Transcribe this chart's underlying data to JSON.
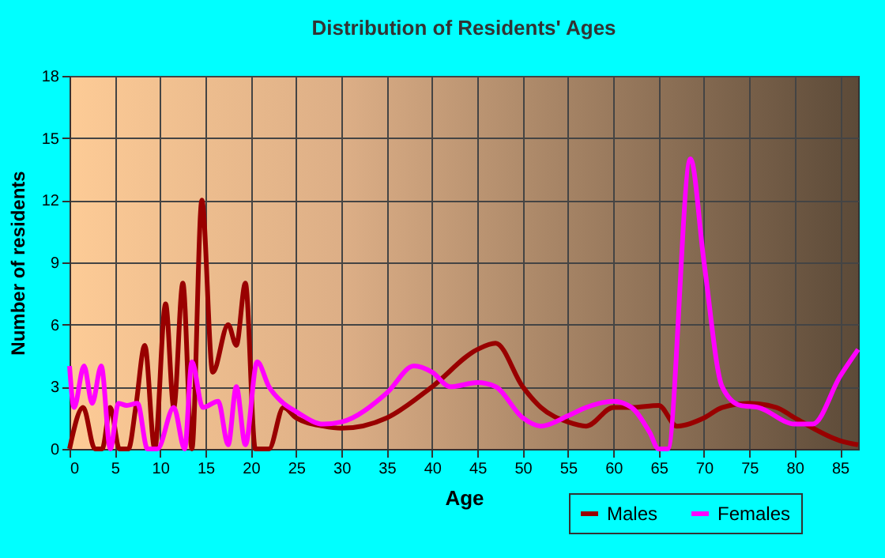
{
  "chart_data": {
    "type": "line",
    "title": "Distribution of Residents' Ages",
    "xlabel": "Age",
    "ylabel": "Number of residents",
    "xlim": [
      0,
      87
    ],
    "xticks": [
      0,
      5,
      10,
      15,
      20,
      25,
      30,
      35,
      40,
      45,
      50,
      55,
      60,
      65,
      70,
      75,
      80,
      85
    ],
    "ylim": [
      0,
      18
    ],
    "yticks": [
      0,
      3,
      6,
      9,
      12,
      15,
      18
    ],
    "grid": true,
    "legend": "bottom right",
    "marker": "none",
    "line_style": "solid",
    "series": [
      {
        "name": "Males",
        "color": "#990000",
        "x": [
          0,
          1.5,
          2.8,
          3.6,
          4.5,
          5.5,
          6.5,
          7.3,
          8.3,
          9.4,
          10.6,
          11.5,
          12.5,
          13.5,
          14.6,
          15.8,
          17.5,
          18.4,
          19.4,
          20.5,
          22,
          23.6,
          25,
          28,
          30,
          35,
          40,
          45,
          47,
          50,
          52,
          55,
          57,
          60,
          62,
          65,
          67,
          70,
          72,
          75,
          78,
          80,
          85,
          87
        ],
        "values": [
          0,
          2,
          0,
          0,
          2,
          0,
          0,
          2,
          5,
          0,
          7,
          2,
          8,
          0,
          12,
          3.7,
          6,
          5,
          8,
          0,
          0,
          2,
          1.5,
          1.1,
          1,
          1.5,
          3,
          4.8,
          5.1,
          3,
          2,
          1.3,
          1.1,
          2,
          2,
          2.1,
          1.1,
          1.5,
          2,
          2.2,
          2,
          1.5,
          0.4,
          0.2
        ]
      },
      {
        "name": "Females",
        "color": "#ff00ff",
        "x": [
          0,
          0.5,
          1.6,
          2.5,
          3.5,
          4.5,
          5.4,
          6.3,
          7.5,
          8.6,
          9.7,
          11.5,
          12.7,
          13.5,
          14.7,
          16.4,
          17.5,
          18.4,
          19.4,
          20.7,
          22,
          23.6,
          25,
          28,
          30,
          35,
          38,
          40,
          42,
          45,
          47,
          50,
          52,
          55,
          57,
          60,
          62,
          64,
          65,
          66,
          68.5,
          70,
          72,
          74,
          76,
          80,
          82,
          85,
          87
        ],
        "values": [
          4,
          2,
          4,
          2.2,
          4,
          0,
          2.2,
          2.1,
          2.2,
          0,
          0,
          2,
          0,
          4.2,
          2,
          2.3,
          0.2,
          3,
          0.2,
          4.2,
          3,
          2.2,
          1.8,
          1.2,
          1.3,
          2.7,
          4,
          3.7,
          3,
          3.2,
          3,
          1.5,
          1.1,
          1.6,
          2,
          2.3,
          2,
          0.8,
          0,
          0,
          14,
          9,
          3,
          2.1,
          2,
          1.2,
          1.2,
          3.5,
          4.8
        ]
      }
    ]
  }
}
